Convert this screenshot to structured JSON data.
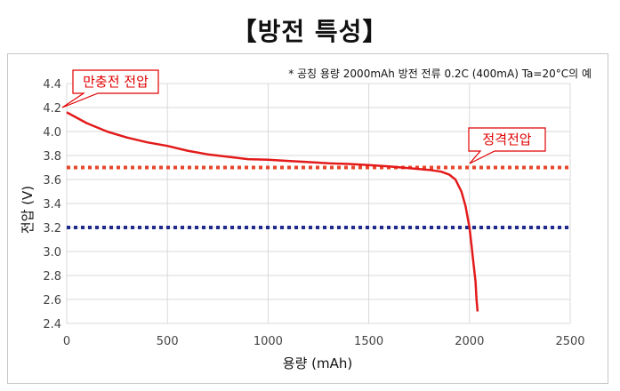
{
  "title": "【방전 특성】",
  "chart_data": {
    "type": "line",
    "note": "* 공칭 용량 2000mAh 방전 전류 0.2C (400mA) Ta=20°C의 예",
    "xlabel": "용량 (mAh)",
    "ylabel": "전압 (V)",
    "xlim": [
      0,
      2500
    ],
    "ylim": [
      2.4,
      4.4
    ],
    "xticks": [
      0,
      500,
      1000,
      1500,
      2000,
      2500
    ],
    "yticks": [
      2.4,
      2.6,
      2.8,
      3.0,
      3.2,
      3.4,
      3.6,
      3.8,
      4.0,
      4.2,
      4.4
    ],
    "ytick_labels": [
      "2.4",
      "2.6",
      "2.8",
      "3.0",
      "3.2",
      "3.4",
      "3.6",
      "3.8",
      "4.0",
      "4.2",
      "4.4"
    ],
    "grid": true,
    "series": [
      {
        "color": "#e31a1a",
        "x": [
          0,
          100,
          200,
          300,
          400,
          500,
          600,
          700,
          800,
          900,
          1000,
          1100,
          1200,
          1300,
          1400,
          1500,
          1600,
          1700,
          1800,
          1860,
          1900,
          1930,
          1960,
          1980,
          2000,
          2010,
          2020,
          2030,
          2035,
          2040
        ],
        "y": [
          4.16,
          4.07,
          4.0,
          3.95,
          3.91,
          3.88,
          3.84,
          3.81,
          3.79,
          3.77,
          3.765,
          3.755,
          3.745,
          3.735,
          3.73,
          3.72,
          3.71,
          3.695,
          3.68,
          3.665,
          3.64,
          3.6,
          3.5,
          3.38,
          3.2,
          3.05,
          2.9,
          2.75,
          2.6,
          2.5
        ]
      }
    ],
    "reference_lines": [
      {
        "y": 3.7,
        "color": "#e8462a",
        "style": "dotted"
      },
      {
        "y": 3.2,
        "color": "#1f2a8c",
        "style": "dotted"
      }
    ],
    "annotations": [
      {
        "text": "만충전 전압",
        "x": 0,
        "y": 4.16
      },
      {
        "text": "정격전압",
        "x": 2000,
        "y": 3.7
      }
    ]
  }
}
